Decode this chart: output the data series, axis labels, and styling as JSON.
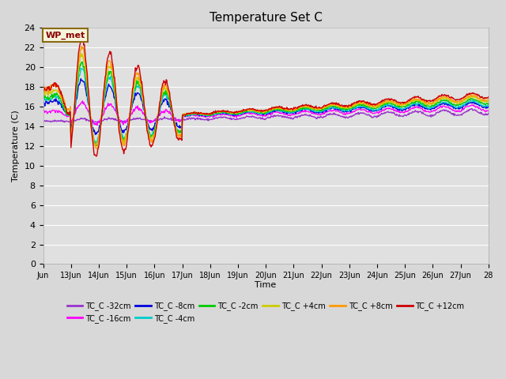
{
  "title": "Temperature Set C",
  "xlabel": "Time",
  "ylabel": "Temperature (C)",
  "ylim": [
    0,
    24
  ],
  "yticks": [
    0,
    2,
    4,
    6,
    8,
    10,
    12,
    14,
    16,
    18,
    20,
    22,
    24
  ],
  "x_labels": [
    "Jun",
    "13Jun",
    "14Jun",
    "15Jun",
    "16Jun",
    "17Jun",
    "18Jun",
    "19Jun",
    "20Jun",
    "21Jun",
    "22Jun",
    "23Jun",
    "24Jun",
    "25Jun",
    "26Jun",
    "27Jun",
    "28"
  ],
  "wp_met_label": "WP_met",
  "fig_bg_color": "#d8d8d8",
  "plot_bg_color": "#e0e0e0",
  "grid_color": "#ffffff",
  "series": [
    {
      "label": "TC_C -32cm",
      "color": "#9933cc",
      "zorder": 1
    },
    {
      "label": "TC_C -16cm",
      "color": "#ff00ff",
      "zorder": 2
    },
    {
      "label": "TC_C -8cm",
      "color": "#0000dd",
      "zorder": 3
    },
    {
      "label": "TC_C -4cm",
      "color": "#00cccc",
      "zorder": 4
    },
    {
      "label": "TC_C -2cm",
      "color": "#00cc00",
      "zorder": 5
    },
    {
      "label": "TC_C +4cm",
      "color": "#cccc00",
      "zorder": 6
    },
    {
      "label": "TC_C +8cm",
      "color": "#ff9900",
      "zorder": 7
    },
    {
      "label": "TC_C +12cm",
      "color": "#cc0000",
      "zorder": 8
    }
  ],
  "n_days": 16,
  "n_per_day": 48
}
